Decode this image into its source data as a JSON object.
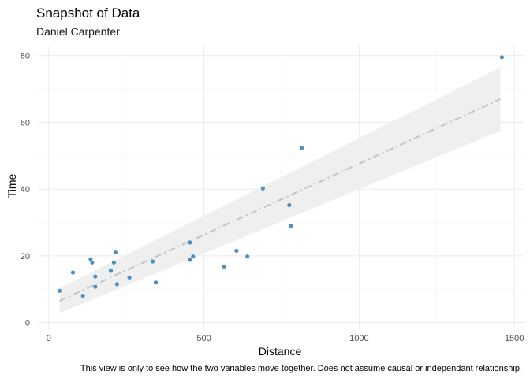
{
  "chart_data": {
    "type": "scatter",
    "title": "Snapshot of Data",
    "subtitle": "Daniel Carpenter",
    "xlabel": "Distance",
    "ylabel": "Time",
    "caption": "This view is only to see how the two variables move together. Does not assume causal or independant relationship.",
    "xlim": [
      -35,
      1530
    ],
    "ylim": [
      -2,
      83
    ],
    "x_ticks": [
      0,
      500,
      1000,
      1500
    ],
    "y_ticks": [
      0,
      20,
      40,
      60,
      80
    ],
    "grid": true,
    "point_color": "#4a90c4",
    "trend_color": "#c4c4c4",
    "band_color": "#efefef",
    "points": [
      {
        "x": 35,
        "y": 9.5
      },
      {
        "x": 78,
        "y": 15
      },
      {
        "x": 110,
        "y": 8
      },
      {
        "x": 135,
        "y": 19
      },
      {
        "x": 140,
        "y": 18
      },
      {
        "x": 150,
        "y": 10.7
      },
      {
        "x": 150,
        "y": 13.8
      },
      {
        "x": 200,
        "y": 15.5
      },
      {
        "x": 210,
        "y": 18
      },
      {
        "x": 215,
        "y": 21
      },
      {
        "x": 220,
        "y": 11.5
      },
      {
        "x": 260,
        "y": 13.5
      },
      {
        "x": 335,
        "y": 18.3
      },
      {
        "x": 345,
        "y": 12
      },
      {
        "x": 455,
        "y": 24
      },
      {
        "x": 455,
        "y": 18.8
      },
      {
        "x": 465,
        "y": 19.8
      },
      {
        "x": 565,
        "y": 16.8
      },
      {
        "x": 605,
        "y": 21.5
      },
      {
        "x": 640,
        "y": 19.8
      },
      {
        "x": 690,
        "y": 40.2
      },
      {
        "x": 775,
        "y": 35.2
      },
      {
        "x": 780,
        "y": 29
      },
      {
        "x": 815,
        "y": 52.3
      },
      {
        "x": 1460,
        "y": 79.5
      }
    ],
    "trend": {
      "x_start": 35,
      "x_end": 1455,
      "y_start": 6.5,
      "y_end": 67,
      "band_lower_start": 2.8,
      "band_upper_start": 10.3,
      "band_lower_end": 57.5,
      "band_upper_end": 76.5
    }
  }
}
